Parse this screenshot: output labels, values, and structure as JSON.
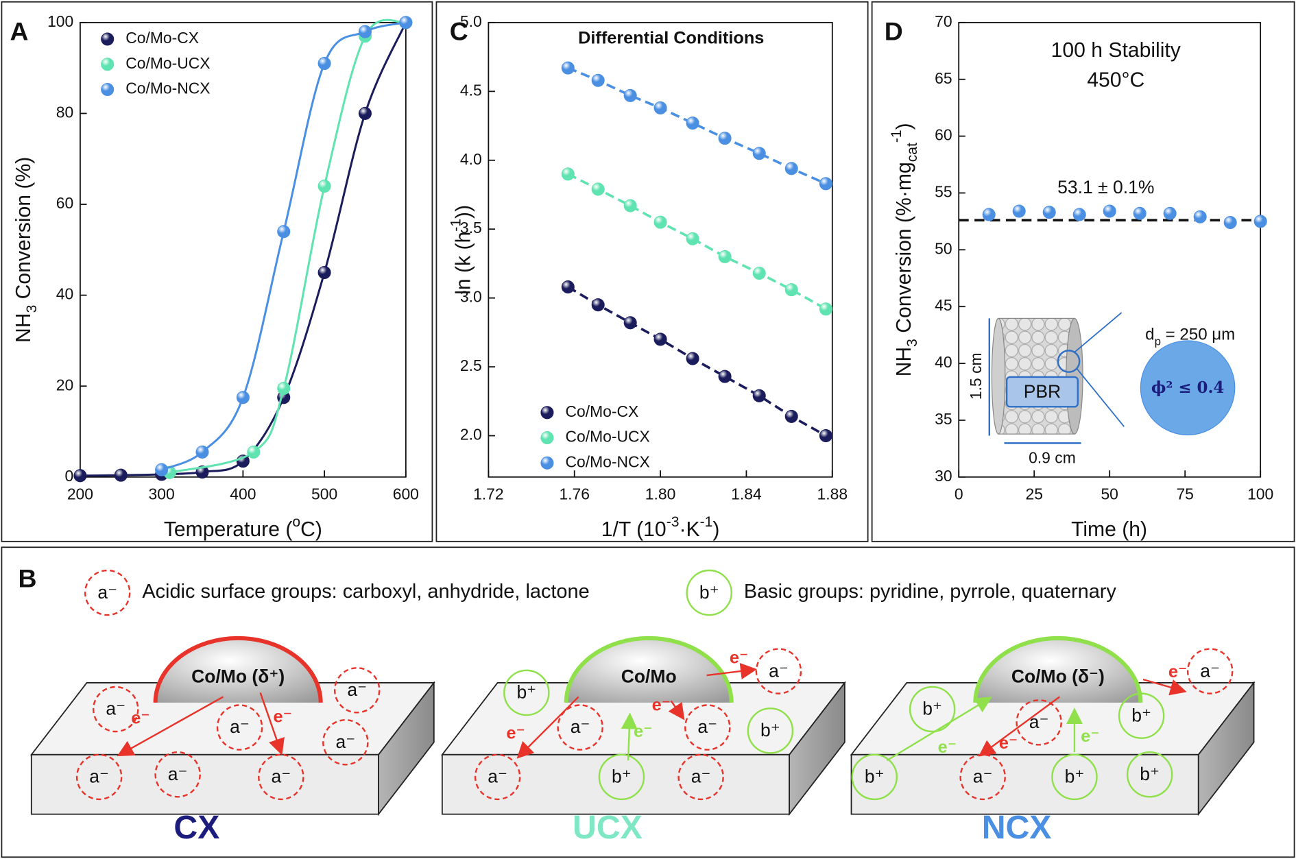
{
  "chart_data": [
    {
      "type": "line",
      "letter": "A",
      "line": "smooth",
      "xlabel": [
        "Temperature (",
        "o",
        "C)"
      ],
      "ylabel": [
        "NH",
        "3",
        " Conversion (%)"
      ],
      "xlim": [
        200,
        600
      ],
      "xticks": [
        200,
        300,
        400,
        500,
        600
      ],
      "ylim": [
        0,
        100
      ],
      "yticks": [
        0,
        20,
        40,
        60,
        80,
        100
      ],
      "legend": "upper left",
      "series": [
        {
          "name": "Co/Mo-CX",
          "color": "#1b1c5c",
          "x": [
            200,
            250,
            300,
            350,
            400,
            450,
            500,
            550,
            600
          ],
          "values": [
            0.3,
            0.4,
            0.6,
            1.1,
            3.5,
            17.5,
            45,
            80,
            100
          ]
        },
        {
          "name": "Co/Mo-UCX",
          "color": "#5fe3b0",
          "x": [
            310,
            413,
            450,
            500,
            550,
            600
          ],
          "values": [
            1,
            5.5,
            19.5,
            64,
            97,
            100
          ]
        },
        {
          "name": "Co/Mo-NCX",
          "color": "#4a8fe2",
          "x": [
            300,
            350,
            400,
            450,
            500,
            550,
            600
          ],
          "values": [
            1.6,
            5.5,
            17.5,
            54,
            91,
            98,
            100
          ]
        }
      ]
    },
    {
      "type": "line",
      "letter": "C",
      "line": "dashed",
      "title": "Differential Conditions",
      "xlabel": [
        "1/T (10",
        "-3",
        "·K",
        "-1",
        ")"
      ],
      "ylabel": [
        "ln (k (h",
        "-1",
        "))"
      ],
      "xlim": [
        1.72,
        1.88
      ],
      "xticks": [
        1.72,
        1.76,
        {
          "value": 1.8,
          "label": "1.80"
        },
        1.84,
        1.88
      ],
      "ylim": [
        1.7,
        5.0
      ],
      "yticks": [
        {
          "value": 2,
          "label": "2.0"
        },
        2.5,
        {
          "value": 3,
          "label": "3.0"
        },
        3.5,
        {
          "value": 4,
          "label": "4.0"
        },
        4.5,
        {
          "value": 5,
          "label": "5.0"
        }
      ],
      "legend": "lower left",
      "series": [
        {
          "name": "Co/Mo-CX",
          "color": "#1b1c5c",
          "x": [
            1.757,
            1.771,
            1.786,
            1.8,
            1.815,
            1.83,
            1.846,
            1.861,
            1.877
          ],
          "values": [
            3.08,
            2.95,
            2.82,
            2.7,
            2.56,
            2.43,
            2.29,
            2.14,
            2.0
          ]
        },
        {
          "name": "Co/Mo-UCX",
          "color": "#5fe3b0",
          "x": [
            1.757,
            1.771,
            1.786,
            1.8,
            1.815,
            1.83,
            1.846,
            1.861,
            1.877
          ],
          "values": [
            3.9,
            3.79,
            3.67,
            3.55,
            3.43,
            3.3,
            3.18,
            3.06,
            2.92
          ]
        },
        {
          "name": "Co/Mo-NCX",
          "color": "#4a8fe2",
          "x": [
            1.757,
            1.771,
            1.786,
            1.8,
            1.815,
            1.83,
            1.846,
            1.861,
            1.877
          ],
          "values": [
            4.67,
            4.58,
            4.47,
            4.38,
            4.27,
            4.16,
            4.05,
            3.94,
            3.83
          ]
        }
      ]
    },
    {
      "type": "scatter",
      "letter": "D",
      "xlabel": [
        "Time (h)"
      ],
      "ylabel": [
        "NH",
        "3",
        " Conversion (%·mg",
        "cat",
        "-1",
        ")"
      ],
      "xlim": [
        0,
        100
      ],
      "xticks": [
        0,
        25,
        50,
        75,
        100
      ],
      "ylim": [
        30,
        70
      ],
      "yticks": [
        30,
        35,
        40,
        45,
        50,
        55,
        60,
        65,
        70
      ],
      "annotations": [
        "100 h Stability",
        "450°C",
        "53.1 ± 0.1%"
      ],
      "reference_line": 52.6,
      "series": [
        {
          "color": "#4a8fe2",
          "x": [
            10,
            20,
            30,
            40,
            50,
            60,
            70,
            80,
            90,
            100
          ],
          "values": [
            53.1,
            53.4,
            53.3,
            53.1,
            53.4,
            53.2,
            53.2,
            52.9,
            52.4,
            52.5
          ]
        }
      ],
      "inset": {
        "height": "1.5 cm",
        "width": "0.9 cm",
        "label": "PBR",
        "particle": [
          "d",
          "p",
          " = 250 μm"
        ],
        "criterion": "ϕ² ≤ 0.4"
      }
    }
  ],
  "diagram": {
    "letter": "B",
    "legend": [
      {
        "symbol": "a⁻",
        "text": "Acidic surface groups: carboxyl, anhydride, lactone"
      },
      {
        "symbol": "b⁺",
        "text": "Basic groups: pyridine, pyrrole, quaternary"
      }
    ],
    "panels": [
      {
        "name": "CX",
        "particle": "Co/Mo (δ⁺)",
        "groups": [
          "a⁻",
          "a⁻",
          "a⁻",
          "a⁻",
          "a⁻",
          "a⁻",
          "a⁻"
        ],
        "electrons": [
          "e⁻",
          "e⁻"
        ]
      },
      {
        "name": "UCX",
        "particle": "Co/Mo",
        "groups": [
          "b⁺",
          "a⁻",
          "a⁻",
          "b⁺",
          "a⁻",
          "b⁺",
          "a⁻",
          "a⁻"
        ],
        "electrons": [
          "e⁻",
          "e⁻",
          "e⁻",
          "e⁻"
        ]
      },
      {
        "name": "NCX",
        "particle": "Co/Mo (δ⁻)",
        "groups": [
          "b⁺",
          "a⁻",
          "b⁺",
          "a⁻",
          "b⁺",
          "a⁻",
          "b⁺",
          "b⁺"
        ],
        "electrons": [
          "e⁻",
          "e⁻",
          "e⁻",
          "e⁻"
        ]
      }
    ]
  }
}
